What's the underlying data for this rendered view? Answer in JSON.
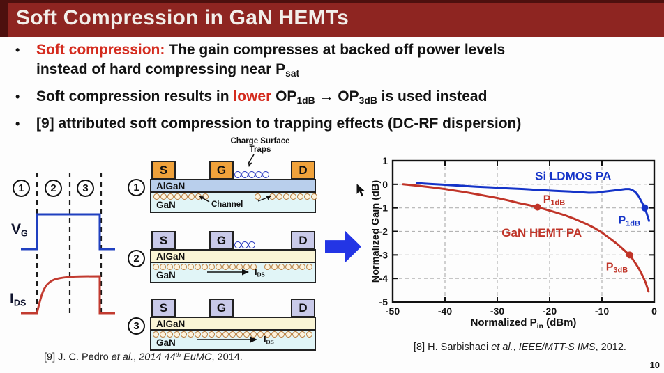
{
  "title": "Soft Compression in GaN HEMTs",
  "page_number": "10",
  "bullet_char": "•",
  "colors": {
    "header_bg": "#8e2521",
    "header_border": "#4d100e",
    "accent_red": "#d42b1e",
    "blue_series": "#1433c8",
    "red_series": "#c03428",
    "arrow_blue": "#2335e5"
  },
  "bullets": [
    {
      "runs": [
        {
          "text": "Soft compression: ",
          "class": "red"
        },
        {
          "text": "The gain compresses at backed off power levels"
        },
        {
          "br": true
        },
        {
          "text": "instead of hard compressing near P"
        },
        {
          "text": "sat",
          "class": "sub"
        }
      ]
    },
    {
      "runs": [
        {
          "text": "Soft compression results in "
        },
        {
          "text": "lower",
          "class": "red"
        },
        {
          "text": " OP"
        },
        {
          "text": "1dB",
          "class": "sub"
        },
        {
          "text": " → OP"
        },
        {
          "text": "3dB",
          "class": "sub"
        },
        {
          "text": " is used instead"
        }
      ]
    },
    {
      "runs": [
        {
          "text": "[9] attributed soft compression to trapping effects (DC-RF dispersion)"
        }
      ]
    }
  ],
  "waveform": {
    "regions": [
      "1",
      "2",
      "3"
    ],
    "vg_main": "V",
    "vg_sub": "G",
    "ids_main": "I",
    "ids_sub": "DS"
  },
  "cross_sections": {
    "numbers": [
      "1",
      "2",
      "3"
    ],
    "contacts": [
      "S",
      "G",
      "D"
    ],
    "layers": [
      "AlGaN",
      "GaN"
    ],
    "traps_label_line1": "Charge Surface",
    "traps_label_line2": "Traps",
    "channel_label": "Channel",
    "ids_main": "I",
    "ids_sub": "DS"
  },
  "chart_data": {
    "type": "line",
    "title": "",
    "xlabel": "Normalized Pin (dBm)",
    "xlabel_runs": [
      {
        "text": "Normalized P"
      },
      {
        "text": "in",
        "sub": true
      },
      {
        "text": " (dBm)"
      }
    ],
    "ylabel": "Normalized Gain (dB)",
    "xlim": [
      -50,
      0
    ],
    "ylim": [
      -5,
      1
    ],
    "xticks": [
      -50,
      -40,
      -30,
      -20,
      -10,
      0
    ],
    "yticks": [
      -5,
      -4,
      -3,
      -2,
      -1,
      0,
      1
    ],
    "grid": true,
    "legend_position": "inline-labels",
    "series": [
      {
        "name": "Si LDMOS PA",
        "color": "#1433c8",
        "label_at": {
          "x": -15.5,
          "y": 0.36
        },
        "points": [
          [
            -45.3,
            0.05
          ],
          [
            -43,
            0.02
          ],
          [
            -40,
            -0.02
          ],
          [
            -37,
            -0.06
          ],
          [
            -34,
            -0.1
          ],
          [
            -31,
            -0.13
          ],
          [
            -28,
            -0.17
          ],
          [
            -25,
            -0.2
          ],
          [
            -22,
            -0.24
          ],
          [
            -19,
            -0.28
          ],
          [
            -16,
            -0.31
          ],
          [
            -14,
            -0.34
          ],
          [
            -12.5,
            -0.36
          ],
          [
            -11,
            -0.35
          ],
          [
            -9.5,
            -0.31
          ],
          [
            -8,
            -0.27
          ],
          [
            -6.5,
            -0.23
          ],
          [
            -5.5,
            -0.2
          ],
          [
            -4.8,
            -0.2
          ],
          [
            -4.2,
            -0.24
          ],
          [
            -3.6,
            -0.33
          ],
          [
            -3,
            -0.5
          ],
          [
            -2.4,
            -0.75
          ],
          [
            -1.9,
            -0.97
          ],
          [
            -1.5,
            -1.2
          ],
          [
            -1.2,
            -1.4
          ],
          [
            -1,
            -1.55
          ]
        ],
        "markers": [
          {
            "x": -1.8,
            "y": -1,
            "label": "P",
            "sub": "1dB",
            "dx": -38,
            "dy": 23
          }
        ]
      },
      {
        "name": "GaN HEMT PA",
        "color": "#c03428",
        "label_at": {
          "x": -21.5,
          "y": -2.05
        },
        "points": [
          [
            -48,
            0
          ],
          [
            -46,
            -0.04
          ],
          [
            -44,
            -0.09
          ],
          [
            -42,
            -0.14
          ],
          [
            -40,
            -0.2
          ],
          [
            -38,
            -0.27
          ],
          [
            -36,
            -0.34
          ],
          [
            -34,
            -0.42
          ],
          [
            -32,
            -0.5
          ],
          [
            -30,
            -0.58
          ],
          [
            -28,
            -0.68
          ],
          [
            -26,
            -0.79
          ],
          [
            -24,
            -0.88
          ],
          [
            -22.3,
            -0.97
          ],
          [
            -21,
            -1.05
          ],
          [
            -19,
            -1.18
          ],
          [
            -17,
            -1.32
          ],
          [
            -15,
            -1.49
          ],
          [
            -13,
            -1.68
          ],
          [
            -11.5,
            -1.85
          ],
          [
            -10,
            -2.05
          ],
          [
            -8.5,
            -2.3
          ],
          [
            -7,
            -2.55
          ],
          [
            -6,
            -2.75
          ],
          [
            -5,
            -2.95
          ],
          [
            -4.3,
            -3.12
          ],
          [
            -3.6,
            -3.35
          ],
          [
            -2.9,
            -3.6
          ],
          [
            -2.2,
            -3.9
          ],
          [
            -1.6,
            -4.2
          ],
          [
            -1.1,
            -4.55
          ]
        ],
        "markers": [
          {
            "x": -22.3,
            "y": -0.97,
            "label": "P",
            "sub": "1dB",
            "dx": 8,
            "dy": -6
          },
          {
            "x": -4.7,
            "y": -3,
            "label": "P",
            "sub": "3dB",
            "dx": -34,
            "dy": 22
          }
        ]
      }
    ]
  },
  "citations": {
    "left_runs": [
      {
        "text": "[9] J. C. Pedro "
      },
      {
        "text": "et al.",
        "class": "i"
      },
      {
        "text": ", "
      },
      {
        "text": "2014 44",
        "class": "i"
      },
      {
        "text": "th",
        "class": "i sup"
      },
      {
        "text": " EuMC",
        "class": "i"
      },
      {
        "text": ", 2014."
      }
    ],
    "right_runs": [
      {
        "text": "[8] H. Sarbishaei "
      },
      {
        "text": "et al.",
        "class": "i"
      },
      {
        "text": ", "
      },
      {
        "text": "IEEE/MTT-S IMS",
        "class": "i"
      },
      {
        "text": ", 2012."
      }
    ]
  }
}
